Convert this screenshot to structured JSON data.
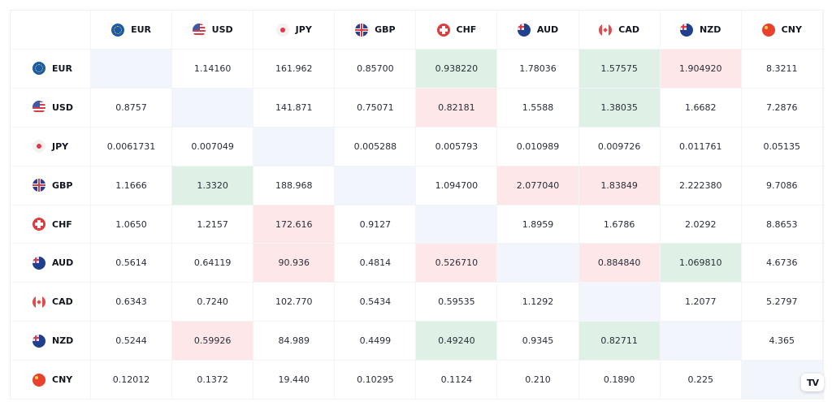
{
  "currencies": [
    "EUR",
    "USD",
    "JPY",
    "GBP",
    "CHF",
    "AUD",
    "CAD",
    "NZD",
    "CNY"
  ],
  "rows": [
    {
      "currency": "EUR",
      "values": [
        "",
        "1.14160",
        "161.962",
        "0.85700",
        "0.938220",
        "1.78036",
        "1.57575",
        "1.904920",
        "8.3211"
      ],
      "highlight": [
        "d",
        "",
        "",
        "",
        "g",
        "",
        "g",
        "r",
        ""
      ]
    },
    {
      "currency": "USD",
      "values": [
        "0.8757",
        "",
        "141.871",
        "0.75071",
        "0.82181",
        "1.5588",
        "1.38035",
        "1.6682",
        "7.2876"
      ],
      "highlight": [
        "",
        "d",
        "",
        "",
        "r",
        "",
        "g",
        "",
        ""
      ]
    },
    {
      "currency": "JPY",
      "values": [
        "0.0061731",
        "0.007049",
        "",
        "0.005288",
        "0.005793",
        "0.010989",
        "0.009726",
        "0.011761",
        "0.05135"
      ],
      "highlight": [
        "",
        "",
        "d",
        "",
        "",
        "",
        "",
        "",
        ""
      ]
    },
    {
      "currency": "GBP",
      "values": [
        "1.1666",
        "1.3320",
        "188.968",
        "",
        "1.094700",
        "2.077040",
        "1.83849",
        "2.222380",
        "9.7086"
      ],
      "highlight": [
        "",
        "g",
        "",
        "d",
        "",
        "r",
        "r",
        "",
        ""
      ]
    },
    {
      "currency": "CHF",
      "values": [
        "1.0650",
        "1.2157",
        "172.616",
        "0.9127",
        "",
        "1.8959",
        "1.6786",
        "2.0292",
        "8.8653"
      ],
      "highlight": [
        "",
        "",
        "r",
        "",
        "d",
        "",
        "",
        "",
        ""
      ]
    },
    {
      "currency": "AUD",
      "values": [
        "0.5614",
        "0.64119",
        "90.936",
        "0.4814",
        "0.526710",
        "",
        "0.884840",
        "1.069810",
        "4.6736"
      ],
      "highlight": [
        "",
        "",
        "r",
        "",
        "r",
        "d",
        "r",
        "g",
        ""
      ]
    },
    {
      "currency": "CAD",
      "values": [
        "0.6343",
        "0.7240",
        "102.770",
        "0.5434",
        "0.59535",
        "1.1292",
        "",
        "1.2077",
        "5.2797"
      ],
      "highlight": [
        "",
        "",
        "",
        "",
        "",
        "",
        "d",
        "",
        ""
      ]
    },
    {
      "currency": "NZD",
      "values": [
        "0.5244",
        "0.59926",
        "84.989",
        "0.4499",
        "0.49240",
        "0.9345",
        "0.82711",
        "",
        "4.365"
      ],
      "highlight": [
        "",
        "r",
        "",
        "",
        "g",
        "",
        "g",
        "d",
        ""
      ]
    },
    {
      "currency": "CNY",
      "values": [
        "0.12012",
        "0.1372",
        "19.440",
        "0.10295",
        "0.1124",
        "0.210",
        "0.1890",
        "0.225",
        ""
      ],
      "highlight": [
        "",
        "",
        "",
        "",
        "",
        "",
        "",
        "",
        "d"
      ]
    }
  ],
  "colors": {
    "up": "#dff0e6",
    "down": "#fde7e9",
    "diagonal": "#f2f5fc"
  },
  "logo": "TV"
}
